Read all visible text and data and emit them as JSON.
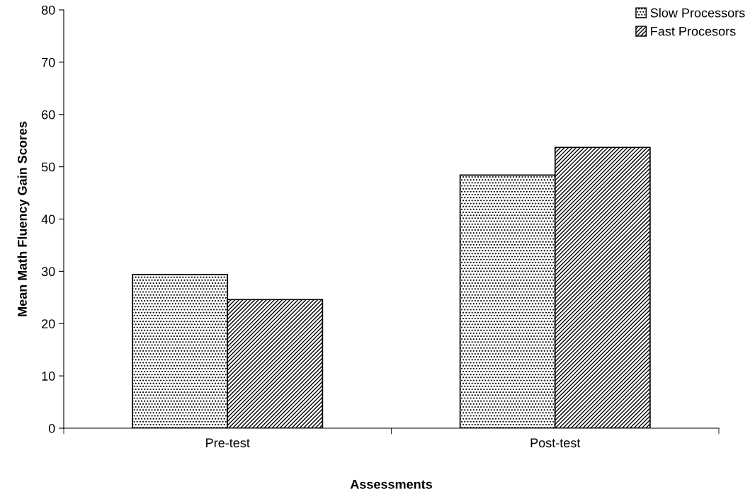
{
  "chart_data": {
    "type": "bar",
    "xlabel": "Assessments",
    "ylabel": "Mean Math Fluency Gain Scores",
    "categories": [
      "Pre-test",
      "Post-test"
    ],
    "series": [
      {
        "name": "Slow Processors",
        "color": "#000000",
        "values": [
          29.4,
          48.4
        ]
      },
      {
        "name": "Fast Procesors",
        "color": "#000000",
        "values": [
          24.6,
          53.7
        ]
      }
    ],
    "ylim": [
      0,
      80
    ],
    "yticks": [
      0,
      10,
      20,
      30,
      40,
      50,
      60,
      70,
      80
    ],
    "grid": false,
    "legend": "top right"
  }
}
